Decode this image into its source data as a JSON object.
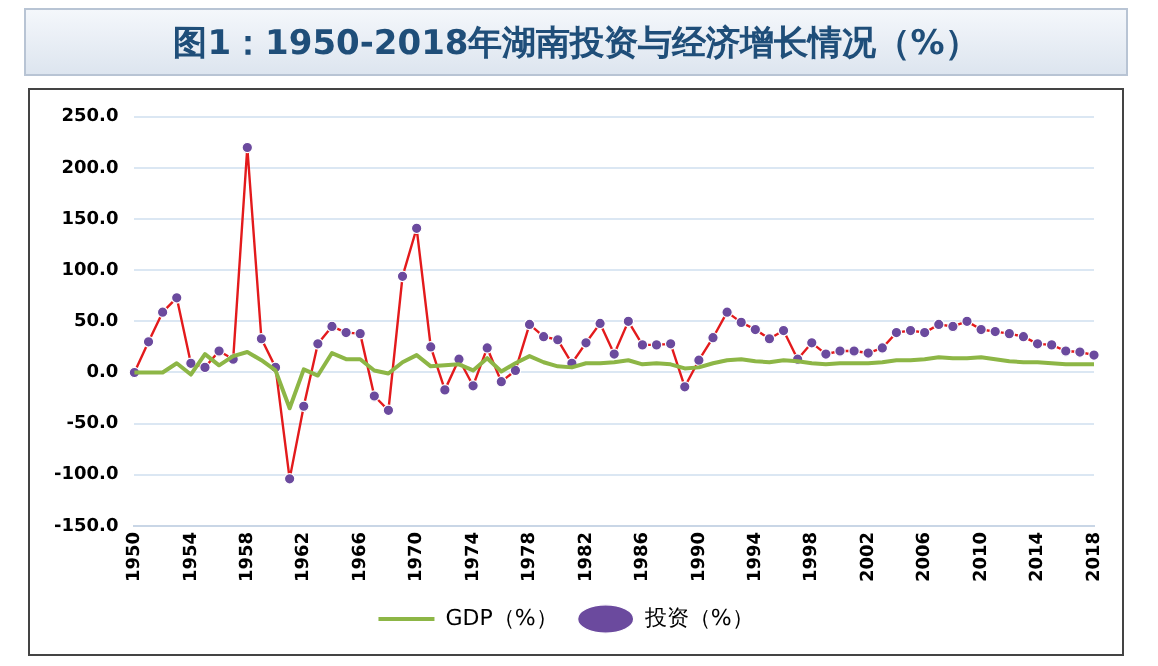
{
  "chart_data": {
    "type": "line",
    "title": "图1：1950-2018年湖南投资与经济增长情况（%）",
    "categories": [
      "1950",
      null,
      null,
      null,
      "1954",
      null,
      null,
      null,
      "1958",
      null,
      null,
      null,
      "1962",
      null,
      null,
      null,
      "1966",
      null,
      null,
      null,
      "1970",
      null,
      null,
      null,
      "1974",
      null,
      null,
      null,
      "1978",
      null,
      null,
      null,
      "1982",
      null,
      null,
      null,
      "1986",
      null,
      null,
      null,
      "1990",
      null,
      null,
      null,
      "1994",
      null,
      null,
      null,
      "1998",
      null,
      null,
      null,
      "2002",
      null,
      null,
      null,
      "2006",
      null,
      null,
      null,
      "2010",
      null,
      null,
      null,
      "2014",
      null,
      null,
      null,
      "2018"
    ],
    "series": [
      {
        "name": "GDP（%）",
        "color": "#8db646",
        "marker": "none",
        "values": [
          0,
          0,
          0,
          9,
          -2,
          18,
          7,
          16,
          20,
          12,
          2,
          -35,
          3,
          -3,
          19,
          13,
          13,
          2,
          -1,
          10,
          17,
          6,
          7,
          8,
          2,
          14,
          1,
          9,
          16,
          10,
          6,
          5,
          9,
          9,
          10,
          12,
          8,
          9,
          8,
          4,
          5,
          9,
          12,
          13,
          11,
          10,
          12,
          11,
          9,
          8,
          9,
          9,
          9,
          10,
          12,
          12,
          13,
          15,
          14,
          14,
          15,
          13,
          11,
          10,
          10,
          9,
          8,
          8,
          8
        ]
      },
      {
        "name": "投资（%）",
        "color": "#e31a1c",
        "marker": "circle",
        "colors": [
          "#6b4a9e",
          "#6b4a9e",
          "#6b4a9e",
          "#6b4a9e",
          "#6b4a9e",
          "#6b4a9e",
          "#6b4a9e",
          "#6b4a9e",
          "#6b4a9e",
          "#6b4a9e",
          "#6b4a9e",
          "#6b4a9e",
          "#6b4a9e",
          "#6b4a9e",
          "#6b4a9e",
          "#6b4a9e",
          "#6b4a9e",
          "#6b4a9e",
          "#6b4a9e",
          "#6b4a9e",
          "#6b4a9e",
          "#6b4a9e",
          "#6b4a9e",
          "#6b4a9e",
          "#6b4a9e",
          "#6b4a9e",
          "#6b4a9e",
          "#6b4a9e",
          "#6b4a9e",
          "#6b4a9e",
          "#6b4a9e",
          "#6b4a9e",
          "#6b4a9e",
          "#6b4a9e",
          "#6b4a9e",
          "#6b4a9e",
          "#6b4a9e",
          "#6b4a9e",
          "#6b4a9e",
          "#6b4a9e",
          "#6b4a9e",
          "#6b4a9e",
          "#6b4a9e",
          "#6b4a9e",
          "#6b4a9e",
          "#6b4a9e",
          "#6b4a9e",
          "#6b4a9e",
          "#6b4a9e",
          "#6b4a9e",
          "#6b4a9e",
          "#6b4a9e",
          "#6b4a9e",
          "#6b4a9e",
          "#6b4a9e",
          "#6b4a9e",
          "#6b4a9e",
          "#6b4a9e",
          "#6b4a9e",
          "#6b4a9e",
          "#6b4a9e",
          "#6b4a9e",
          "#6b4a9e",
          "#6b4a9e",
          "#6b4a9e",
          "#6b4a9e",
          "#6b4a9e",
          "#6b4a9e",
          "#6b4a9e"
        ],
        "values": [
          0,
          30,
          59,
          73,
          9,
          5,
          21,
          13,
          220,
          33,
          5,
          -104,
          -33,
          28,
          45,
          39,
          38,
          -23,
          -37,
          94,
          141,
          25,
          -17,
          13,
          -13,
          24,
          -9,
          2,
          47,
          35,
          32,
          9,
          29,
          48,
          18,
          50,
          27,
          27,
          28,
          -14,
          12,
          34,
          59,
          49,
          42,
          33,
          41,
          13,
          29,
          18,
          21,
          21,
          19,
          24,
          39,
          41,
          39,
          47,
          45,
          50,
          42,
          40,
          38,
          35,
          28,
          27,
          21,
          20,
          17
        ]
      }
    ],
    "ylim": [
      -150,
      250
    ],
    "yticks": [
      {
        "value": -150,
        "label": "-150.0"
      },
      {
        "value": -100,
        "label": "-100.0"
      },
      {
        "value": -50,
        "label": "-50.0"
      },
      {
        "value": 0,
        "label": "0.0"
      },
      {
        "value": 50,
        "label": "50.0"
      },
      {
        "value": 100,
        "label": "100.0"
      },
      {
        "value": 150,
        "label": "150.0"
      },
      {
        "value": 200,
        "label": "200.0"
      },
      {
        "value": 250,
        "label": "250.0"
      }
    ],
    "grid": "y",
    "legend": "bottom"
  }
}
